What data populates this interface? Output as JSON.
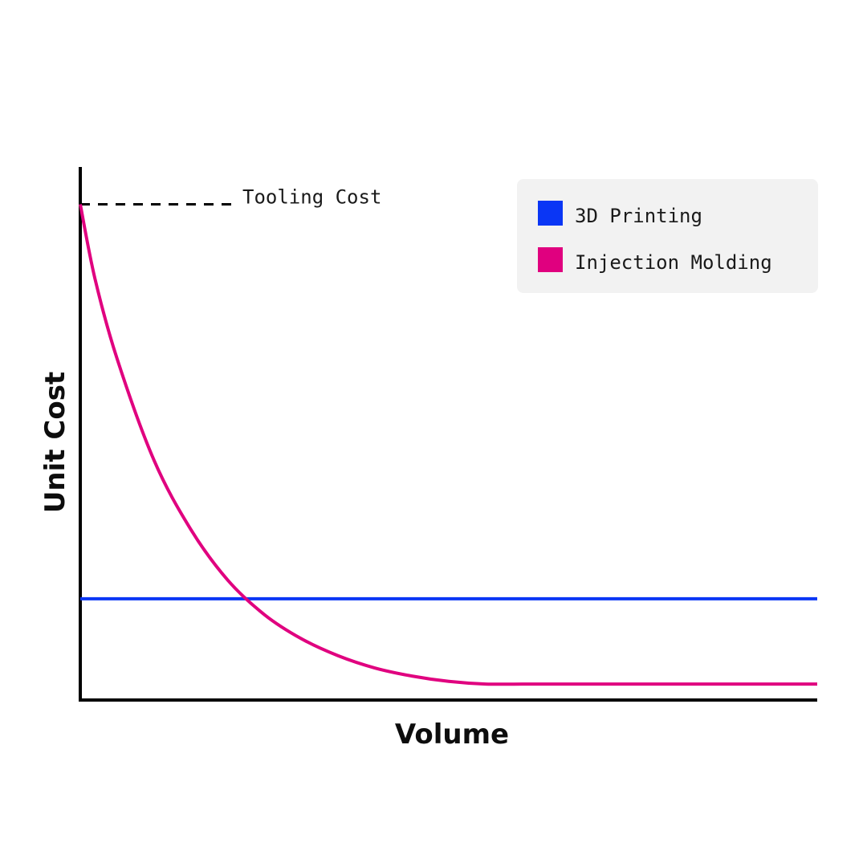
{
  "chart_data": {
    "type": "line",
    "xlabel": "Volume",
    "ylabel": "Unit Cost",
    "xlim": [
      0,
      100
    ],
    "ylim": [
      0,
      100
    ],
    "grid": false,
    "legend": {
      "placement": "top-right",
      "background": "#f2f2f2"
    },
    "annotations": [
      {
        "text": "Tooling Cost",
        "y": 93,
        "style": "dashed",
        "color": "#000000"
      }
    ],
    "series": [
      {
        "name": "3D Printing",
        "color": "#0a36f5",
        "x": [
          0,
          100
        ],
        "y": [
          19,
          19
        ]
      },
      {
        "name": "Injection Molding",
        "color": "#e0007f",
        "x": [
          0,
          2,
          5,
          10,
          15,
          20,
          25,
          30,
          35,
          40,
          45,
          50,
          55,
          60,
          65,
          70,
          75,
          80,
          85,
          90,
          95,
          100
        ],
        "y": [
          93,
          79,
          64,
          45,
          32,
          22.5,
          16,
          11.5,
          8.3,
          6,
          4.5,
          3.5,
          3,
          3,
          3,
          3,
          3,
          3,
          3,
          3,
          3,
          3
        ]
      }
    ]
  }
}
